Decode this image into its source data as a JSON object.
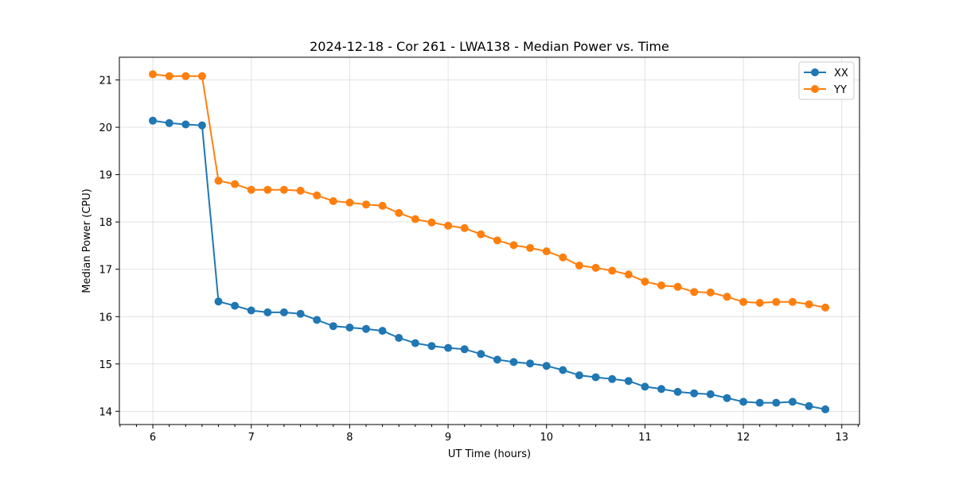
{
  "chart_data": {
    "type": "line",
    "title": "2024-12-18 - Cor 261 - LWA138 - Median Power vs. Time",
    "xlabel": "UT Time (hours)",
    "ylabel": "Median Power (CPU)",
    "xlim": [
      5.66,
      13.18
    ],
    "ylim": [
      13.72,
      21.48
    ],
    "xticks": [
      6,
      7,
      8,
      9,
      10,
      11,
      12,
      13
    ],
    "yticks": [
      14,
      15,
      16,
      17,
      18,
      19,
      20,
      21
    ],
    "grid": true,
    "legend_position": "top-right",
    "x": [
      6.0,
      6.1667,
      6.3333,
      6.5,
      6.6667,
      6.8333,
      7.0,
      7.1667,
      7.3333,
      7.5,
      7.6667,
      7.8333,
      8.0,
      8.1667,
      8.3333,
      8.5,
      8.6667,
      8.8333,
      9.0,
      9.1667,
      9.3333,
      9.5,
      9.6667,
      9.8333,
      10.0,
      10.1667,
      10.3333,
      10.5,
      10.6667,
      10.8333,
      11.0,
      11.1667,
      11.3333,
      11.5,
      11.6667,
      11.8333,
      12.0,
      12.1667,
      12.3333,
      12.5,
      12.6667,
      12.8333
    ],
    "series": [
      {
        "name": "XX",
        "color": "#1f77b4",
        "values": [
          20.14,
          20.09,
          20.06,
          20.04,
          16.32,
          16.23,
          16.13,
          16.09,
          16.09,
          16.06,
          15.93,
          15.8,
          15.77,
          15.74,
          15.7,
          15.55,
          15.44,
          15.38,
          15.34,
          15.31,
          15.21,
          15.09,
          15.04,
          15.01,
          14.96,
          14.87,
          14.76,
          14.72,
          14.68,
          14.64,
          14.52,
          14.47,
          14.41,
          14.38,
          14.36,
          14.28,
          14.2,
          14.18,
          14.18,
          14.2,
          14.11,
          14.04
        ]
      },
      {
        "name": "YY",
        "color": "#ff7f0e",
        "values": [
          21.12,
          21.08,
          21.08,
          21.08,
          18.87,
          18.8,
          18.68,
          18.68,
          18.68,
          18.66,
          18.56,
          18.44,
          18.41,
          18.37,
          18.34,
          18.19,
          18.06,
          17.99,
          17.92,
          17.87,
          17.74,
          17.61,
          17.51,
          17.45,
          17.38,
          17.25,
          17.08,
          17.03,
          16.97,
          16.89,
          16.74,
          16.66,
          16.63,
          16.52,
          16.51,
          16.42,
          16.31,
          16.29,
          16.31,
          16.31,
          16.26,
          16.19
        ]
      }
    ]
  }
}
